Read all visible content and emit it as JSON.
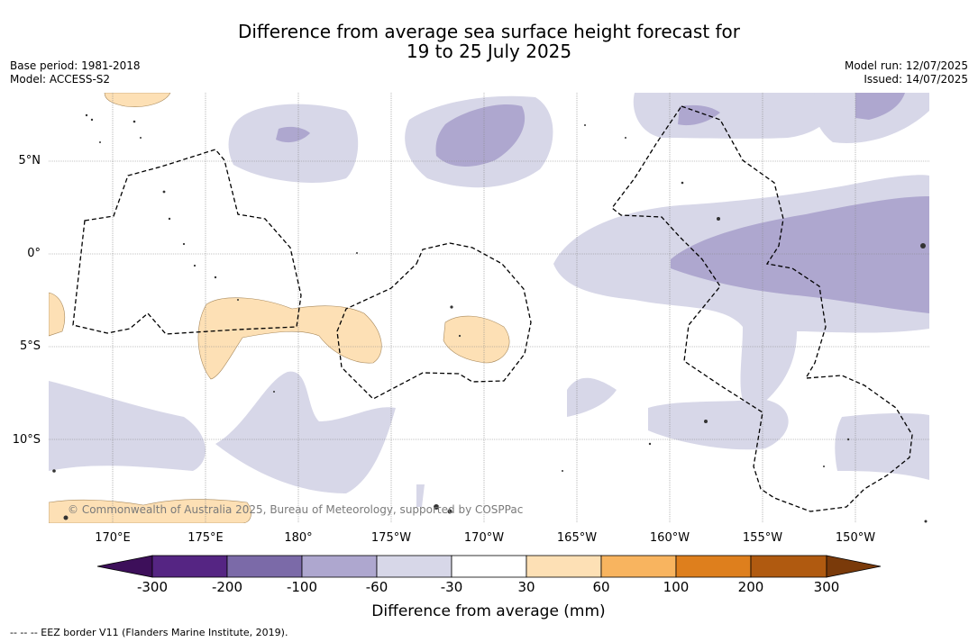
{
  "title": {
    "line1": "Difference from average sea surface height forecast for",
    "line2": "19 to 25 July 2025"
  },
  "meta_left": {
    "base_period": "Base period: 1981-2018",
    "model": "Model: ACCESS-S2"
  },
  "meta_right": {
    "model_run": "Model run: 12/07/2025",
    "issued": "Issued: 14/07/2025"
  },
  "map": {
    "lat_labels": [
      "5°N",
      "0°",
      "5°S",
      "10°S"
    ],
    "lon_labels": [
      "170°E",
      "175°E",
      "180°",
      "175°W",
      "170°W",
      "165°W",
      "160°W",
      "155°W",
      "150°W"
    ],
    "copyright": "© Commonwealth of Australia 2025, Bureau of Meteorology, supported by COSPPac",
    "colors": {
      "land": "#333333",
      "ocean": "#ffffff",
      "gridline": "#888888",
      "eez_border": "#000000"
    }
  },
  "colorbar": {
    "title": "Difference from average (mm)",
    "ticks": [
      "-300",
      "-200",
      "-100",
      "-60",
      "-30",
      "30",
      "60",
      "100",
      "200",
      "300"
    ],
    "colors": [
      "#3d0f5a",
      "#552583",
      "#7b6aa8",
      "#aea7cf",
      "#d7d7e8",
      "#ffffff",
      "#fde0b5",
      "#f8b45f",
      "#de7f1d",
      "#b05a10",
      "#7a3a0a"
    ]
  },
  "footnote": "-- -- -- EEZ border V11 (Flanders Marine Institute, 2019)."
}
